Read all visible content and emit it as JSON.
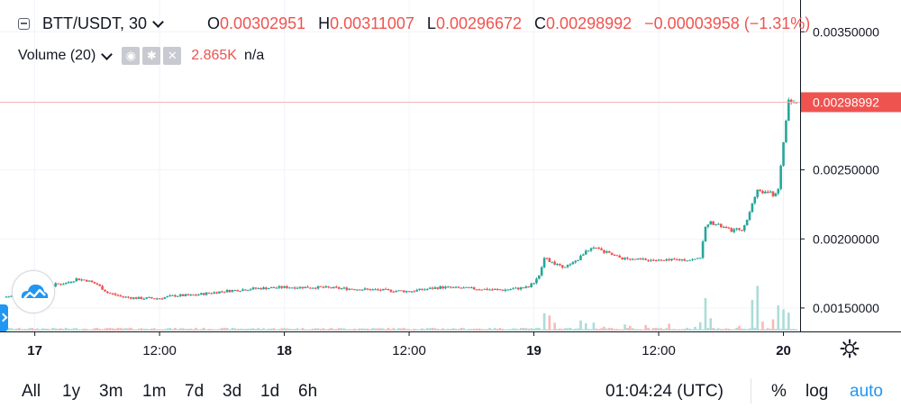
{
  "legend": {
    "symbol": "BTT/USDT, 30",
    "o_label": "O",
    "o_value": "0.00302951",
    "h_label": "H",
    "h_value": "0.00311007",
    "l_label": "L",
    "l_value": "0.00296672",
    "c_label": "C",
    "c_value": "0.00298992",
    "change": "−0.00003958 (−1.31%)",
    "volume_label": "Volume (20)",
    "volume_value": "2.865K",
    "volume_na": "n/a"
  },
  "bottom_bar": {
    "ranges": [
      "All",
      "1y",
      "3m",
      "1m",
      "7d",
      "3d",
      "1d",
      "6h"
    ],
    "clock": "01:04:24 (UTC)",
    "percent_label": "%",
    "log_label": "log",
    "auto_label": "auto"
  },
  "chart_data": {
    "type": "candlestick",
    "symbol": "BTT/USDT",
    "interval_minutes": 30,
    "last_price": 0.00298992,
    "last_price_label": "0.00298992",
    "y_ticks": [
      0.0015,
      0.002,
      0.0025,
      0.0035
    ],
    "y_tick_labels": [
      "0.00150000",
      "0.00200000",
      "0.00250000",
      "0.00350000"
    ],
    "y_range": [
      0.00133,
      0.00373
    ],
    "x_ticks": [
      {
        "label": "17",
        "t": 0,
        "bold": true
      },
      {
        "label": "12:00",
        "t": 24,
        "bold": false
      },
      {
        "label": "18",
        "t": 48,
        "bold": true
      },
      {
        "label": "12:00",
        "t": 72,
        "bold": false
      },
      {
        "label": "19",
        "t": 96,
        "bold": true
      },
      {
        "label": "12:00",
        "t": 120,
        "bold": false
      },
      {
        "label": "20",
        "t": 144,
        "bold": true
      }
    ],
    "x_range": [
      -6,
      147.2
    ],
    "colors": {
      "up": "#26a69a",
      "down": "#ef5350",
      "up_vol": "#acdcd8",
      "down_vol": "#f8b9b8",
      "grid": "#f0f3fa"
    },
    "anchor_points": [
      [
        -6,
        0.00158
      ],
      [
        0,
        0.0016
      ],
      [
        4,
        0.00167
      ],
      [
        6,
        0.00168
      ],
      [
        8,
        0.00171
      ],
      [
        10,
        0.0017
      ],
      [
        12,
        0.00167
      ],
      [
        14,
        0.00161
      ],
      [
        17,
        0.00158
      ],
      [
        20,
        0.00157
      ],
      [
        24,
        0.00157
      ],
      [
        27,
        0.00159
      ],
      [
        30,
        0.00159
      ],
      [
        36,
        0.00162
      ],
      [
        42,
        0.00164
      ],
      [
        48,
        0.00165
      ],
      [
        54,
        0.00165
      ],
      [
        60,
        0.00164
      ],
      [
        66,
        0.00163
      ],
      [
        72,
        0.00162
      ],
      [
        78,
        0.00165
      ],
      [
        84,
        0.00164
      ],
      [
        90,
        0.00163
      ],
      [
        95,
        0.00165
      ],
      [
        97,
        0.00173
      ],
      [
        98,
        0.00186
      ],
      [
        99,
        0.00184
      ],
      [
        101,
        0.0018
      ],
      [
        103,
        0.00181
      ],
      [
        105,
        0.00187
      ],
      [
        106,
        0.00192
      ],
      [
        108,
        0.00193
      ],
      [
        110,
        0.0019
      ],
      [
        112,
        0.00187
      ],
      [
        114,
        0.00185
      ],
      [
        118,
        0.00185
      ],
      [
        121,
        0.00184
      ],
      [
        124,
        0.00185
      ],
      [
        127,
        0.00185
      ],
      [
        128,
        0.00187
      ],
      [
        129,
        0.00208
      ],
      [
        130,
        0.00212
      ],
      [
        132,
        0.00209
      ],
      [
        134,
        0.00206
      ],
      [
        136,
        0.00207
      ],
      [
        137,
        0.00214
      ],
      [
        138,
        0.00225
      ],
      [
        139,
        0.00236
      ],
      [
        140,
        0.00234
      ],
      [
        141,
        0.00234
      ],
      [
        142,
        0.00232
      ],
      [
        143,
        0.00236
      ],
      [
        144,
        0.0027
      ],
      [
        145,
        0.00302
      ],
      [
        145.5,
        0.00305
      ],
      [
        146,
        0.00299
      ]
    ],
    "volume_spikes": [
      {
        "t": 98,
        "v": 0.31
      },
      {
        "t": 99,
        "v": 0.27
      },
      {
        "t": 100,
        "v": 0.14
      },
      {
        "t": 105,
        "v": 0.18
      },
      {
        "t": 106,
        "v": 0.13
      },
      {
        "t": 129,
        "v": 0.58
      },
      {
        "t": 130,
        "v": 0.22
      },
      {
        "t": 138,
        "v": 0.55
      },
      {
        "t": 139,
        "v": 0.8
      },
      {
        "t": 140,
        "v": 0.16
      },
      {
        "t": 142,
        "v": 0.2
      },
      {
        "t": 143,
        "v": 0.45
      },
      {
        "t": 144,
        "v": 0.38
      },
      {
        "t": 145,
        "v": 0.32
      }
    ]
  }
}
